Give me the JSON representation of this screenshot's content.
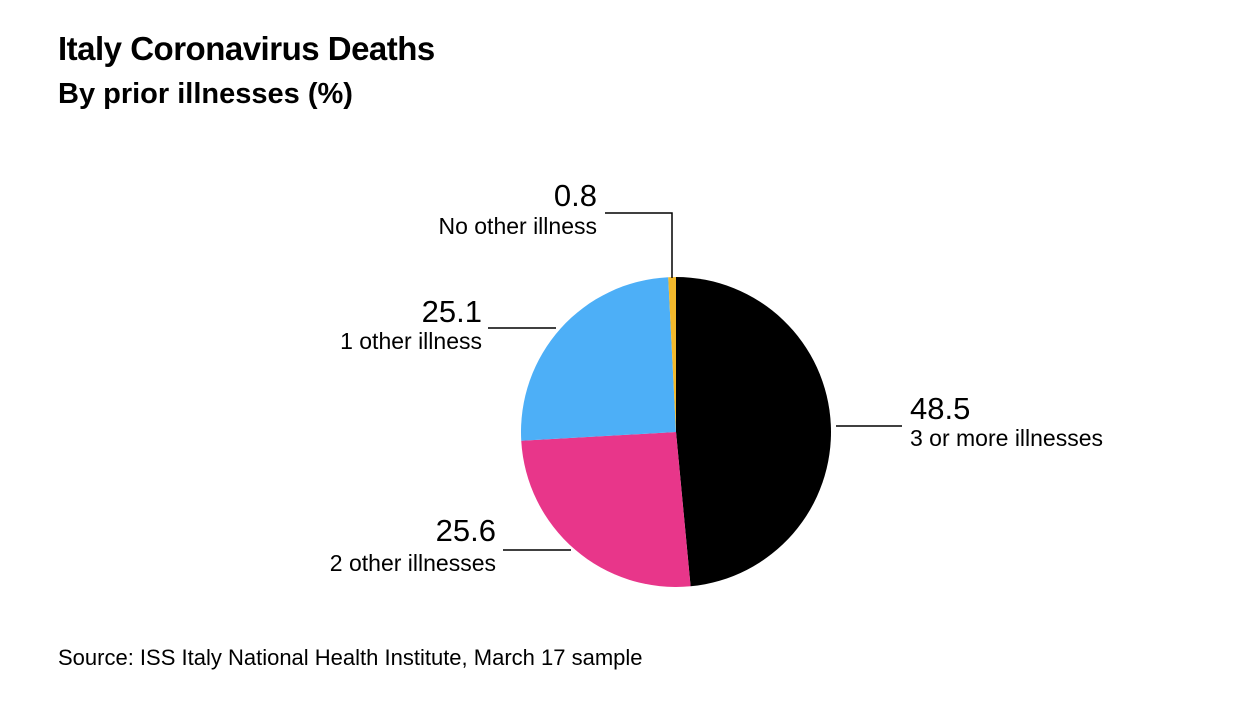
{
  "chart_data": {
    "type": "pie",
    "title": "Italy Coronavirus Deaths",
    "subtitle": "By prior illnesses (%)",
    "source": "Source: ISS Italy National Health Institute, March 17 sample",
    "slices": [
      {
        "label": "3 or more illnesses",
        "value": 48.5,
        "value_text": "48.5",
        "color": "#000000"
      },
      {
        "label": "2 other illnesses",
        "value": 25.6,
        "value_text": "25.6",
        "color": "#E8368A"
      },
      {
        "label": "1 other illness",
        "value": 25.1,
        "value_text": "25.1",
        "color": "#4DAFF7"
      },
      {
        "label": "No other illness",
        "value": 0.8,
        "value_text": "0.8",
        "color": "#F2B92C"
      }
    ]
  }
}
